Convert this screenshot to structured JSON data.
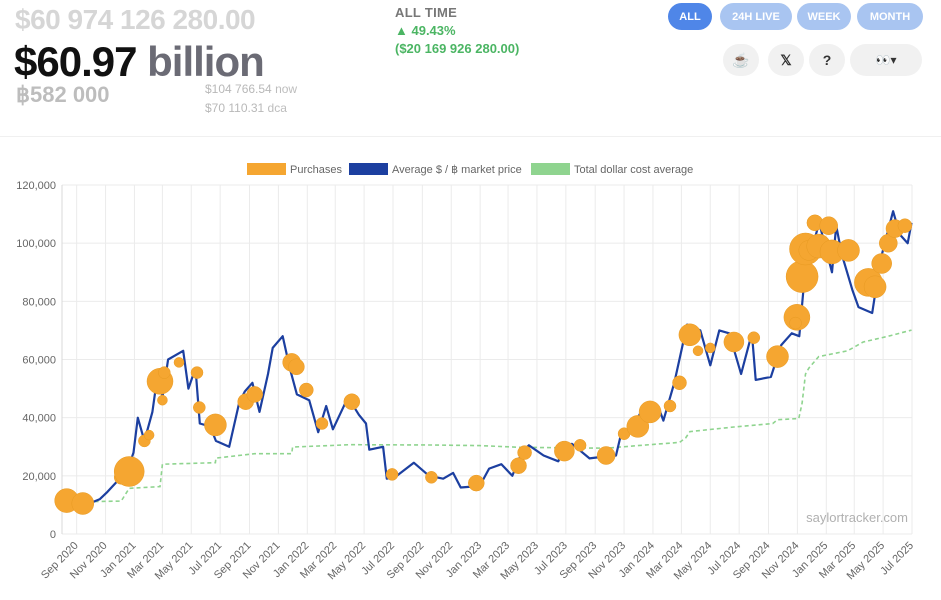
{
  "header": {
    "ghost_value": "$60 974 126 280.00",
    "main_value": "$60.97",
    "main_unit": "billion",
    "btc_amount": "฿582 000",
    "price_value": "$104 766.54",
    "price_label": "now",
    "dca_value": "$70 110.31",
    "dca_label": "dca"
  },
  "performance": {
    "label": "ALL TIME",
    "percent": "▲ 49.43%",
    "usd_gain": "($20 169 926 280.00)"
  },
  "range_buttons": [
    {
      "label": "ALL",
      "active": true
    },
    {
      "label": "24H LIVE",
      "active": false
    },
    {
      "label": "WEEK",
      "active": false
    },
    {
      "label": "MONTH",
      "active": false
    }
  ],
  "icon_buttons": [
    {
      "name": "coffee-icon",
      "glyph": "☕"
    },
    {
      "name": "x-logo-icon",
      "glyph": "𝕏"
    },
    {
      "name": "help-icon",
      "glyph": "?"
    },
    {
      "name": "theme-menu-icon",
      "glyph": "👀▾"
    }
  ],
  "colors": {
    "purchases": "#f5a631",
    "market": "#1c3fa0",
    "dca": "#8fd48f",
    "grid": "#ebebeb"
  },
  "chart_data": {
    "type": "line",
    "title": "",
    "xlabel": "",
    "ylabel": "",
    "ylim": [
      0,
      120000
    ],
    "y_ticks": [
      0,
      20000,
      40000,
      60000,
      80000,
      100000,
      120000
    ],
    "x_ticks": [
      "Sep 2020",
      "Nov 2020",
      "Jan 2021",
      "Mar 2021",
      "May 2021",
      "Jul 2021",
      "Sep 2021",
      "Nov 2021",
      "Jan 2022",
      "Mar 2022",
      "May 2022",
      "Jul 2022",
      "Sep 2022",
      "Nov 2022",
      "Jan 2023",
      "Mar 2023",
      "May 2023",
      "Jul 2023",
      "Sep 2023",
      "Nov 2023",
      "Jan 2024",
      "Mar 2024",
      "May 2024",
      "Jul 2024",
      "Sep 2024",
      "Nov 2024",
      "Jan 2025",
      "Mar 2025",
      "May 2025",
      "Jul 2025"
    ],
    "x_range": [
      "2020-08-01",
      "2025-07-01"
    ],
    "legend": [
      "Purchases",
      "Average $ / ฿ market price",
      "Total dollar cost average"
    ],
    "legend_position": "top",
    "watermark": "saylortracker.com",
    "series": [
      {
        "name": "Average $ / ฿ market price",
        "type": "line",
        "points": [
          [
            "2020-08-11",
            11500
          ],
          [
            "2020-09-01",
            11000
          ],
          [
            "2020-10-01",
            10700
          ],
          [
            "2020-10-20",
            12000
          ],
          [
            "2020-11-05",
            14500
          ],
          [
            "2020-11-25",
            18000
          ],
          [
            "2020-12-10",
            18500
          ],
          [
            "2020-12-30",
            28000
          ],
          [
            "2021-01-08",
            40000
          ],
          [
            "2021-01-22",
            32000
          ],
          [
            "2021-02-08",
            42000
          ],
          [
            "2021-02-20",
            56000
          ],
          [
            "2021-03-01",
            47000
          ],
          [
            "2021-03-13",
            60000
          ],
          [
            "2021-04-14",
            63000
          ],
          [
            "2021-04-25",
            50000
          ],
          [
            "2021-05-10",
            57000
          ],
          [
            "2021-05-19",
            38000
          ],
          [
            "2021-06-10",
            37000
          ],
          [
            "2021-06-22",
            32000
          ],
          [
            "2021-07-20",
            30000
          ],
          [
            "2021-08-10",
            45000
          ],
          [
            "2021-08-22",
            49000
          ],
          [
            "2021-09-07",
            52000
          ],
          [
            "2021-09-22",
            42000
          ],
          [
            "2021-10-10",
            55000
          ],
          [
            "2021-10-20",
            64000
          ],
          [
            "2021-11-10",
            68000
          ],
          [
            "2021-11-25",
            57000
          ],
          [
            "2021-12-10",
            48000
          ],
          [
            "2022-01-05",
            46000
          ],
          [
            "2022-01-24",
            35000
          ],
          [
            "2022-02-10",
            44000
          ],
          [
            "2022-02-24",
            36000
          ],
          [
            "2022-03-28",
            47000
          ],
          [
            "2022-04-20",
            41000
          ],
          [
            "2022-05-05",
            38000
          ],
          [
            "2022-05-12",
            29000
          ],
          [
            "2022-06-10",
            30000
          ],
          [
            "2022-06-18",
            19000
          ],
          [
            "2022-07-05",
            19500
          ],
          [
            "2022-08-14",
            24500
          ],
          [
            "2022-09-15",
            20000
          ],
          [
            "2022-10-15",
            19000
          ],
          [
            "2022-11-05",
            21000
          ],
          [
            "2022-11-21",
            16000
          ],
          [
            "2022-12-31",
            16500
          ],
          [
            "2023-01-20",
            22500
          ],
          [
            "2023-02-15",
            24000
          ],
          [
            "2023-03-10",
            20000
          ],
          [
            "2023-03-30",
            28000
          ],
          [
            "2023-04-14",
            30500
          ],
          [
            "2023-05-15",
            27000
          ],
          [
            "2023-06-15",
            25000
          ],
          [
            "2023-06-30",
            30500
          ],
          [
            "2023-07-14",
            31000
          ],
          [
            "2023-08-20",
            26000
          ],
          [
            "2023-09-15",
            26500
          ],
          [
            "2023-10-15",
            27000
          ],
          [
            "2023-10-25",
            34000
          ],
          [
            "2023-11-20",
            37000
          ],
          [
            "2023-12-10",
            43000
          ],
          [
            "2024-01-15",
            42500
          ],
          [
            "2024-01-23",
            39000
          ],
          [
            "2024-02-15",
            52000
          ],
          [
            "2024-03-13",
            72000
          ],
          [
            "2024-04-10",
            70000
          ],
          [
            "2024-05-01",
            58000
          ],
          [
            "2024-05-20",
            70000
          ],
          [
            "2024-06-10",
            69000
          ],
          [
            "2024-07-05",
            55000
          ],
          [
            "2024-07-28",
            69000
          ],
          [
            "2024-08-05",
            53000
          ],
          [
            "2024-09-06",
            54000
          ],
          [
            "2024-09-28",
            65000
          ],
          [
            "2024-10-20",
            69000
          ],
          [
            "2024-11-05",
            68000
          ],
          [
            "2024-11-22",
            99000
          ],
          [
            "2024-12-05",
            100000
          ],
          [
            "2024-12-17",
            107000
          ],
          [
            "2025-01-13",
            90000
          ],
          [
            "2025-01-22",
            106000
          ],
          [
            "2025-02-03",
            96000
          ],
          [
            "2025-02-25",
            84000
          ],
          [
            "2025-03-10",
            78000
          ],
          [
            "2025-04-08",
            76000
          ],
          [
            "2025-04-25",
            94000
          ],
          [
            "2025-05-22",
            111000
          ],
          [
            "2025-06-05",
            103000
          ],
          [
            "2025-06-22",
            100000
          ],
          [
            "2025-06-30",
            107000
          ]
        ]
      },
      {
        "name": "Total dollar cost average",
        "type": "line",
        "points": [
          [
            "2020-08-11",
            11600
          ],
          [
            "2020-09-14",
            11100
          ],
          [
            "2020-12-04",
            11300
          ],
          [
            "2020-12-21",
            15700
          ],
          [
            "2021-02-24",
            16300
          ],
          [
            "2021-03-01",
            24000
          ],
          [
            "2021-06-21",
            24500
          ],
          [
            "2021-06-22",
            26100
          ],
          [
            "2021-09-12",
            27600
          ],
          [
            "2021-11-29",
            27600
          ],
          [
            "2021-12-01",
            29900
          ],
          [
            "2022-02-01",
            30300
          ],
          [
            "2022-03-31",
            30700
          ],
          [
            "2022-09-20",
            30600
          ],
          [
            "2022-12-31",
            30400
          ],
          [
            "2023-03-25",
            29800
          ],
          [
            "2023-09-24",
            29500
          ],
          [
            "2023-11-30",
            30400
          ],
          [
            "2024-02-26",
            31500
          ],
          [
            "2024-03-10",
            33000
          ],
          [
            "2024-03-19",
            35200
          ],
          [
            "2024-06-20",
            36800
          ],
          [
            "2024-09-10",
            38000
          ],
          [
            "2024-09-20",
            39300
          ],
          [
            "2024-11-04",
            39700
          ],
          [
            "2024-11-11",
            45000
          ],
          [
            "2024-11-18",
            55000
          ],
          [
            "2024-11-25",
            57000
          ],
          [
            "2024-12-16",
            61000
          ],
          [
            "2025-02-15",
            63000
          ],
          [
            "2025-03-20",
            66000
          ],
          [
            "2025-05-12",
            68000
          ],
          [
            "2025-06-30",
            70110
          ]
        ]
      }
    ],
    "purchases": [
      [
        "2020-08-11",
        11500,
        12
      ],
      [
        "2020-09-14",
        10500,
        11
      ],
      [
        "2020-12-04",
        19500,
        7
      ],
      [
        "2020-12-21",
        21500,
        15
      ],
      [
        "2021-01-22",
        32000,
        6
      ],
      [
        "2021-02-01",
        34000,
        5
      ],
      [
        "2021-02-24",
        52500,
        13
      ],
      [
        "2021-03-01",
        46000,
        5
      ],
      [
        "2021-03-05",
        55500,
        6
      ],
      [
        "2021-04-05",
        59000,
        5
      ],
      [
        "2021-05-13",
        55500,
        6
      ],
      [
        "2021-05-18",
        43500,
        6
      ],
      [
        "2021-06-21",
        37500,
        11
      ],
      [
        "2021-08-24",
        45500,
        8
      ],
      [
        "2021-09-12",
        48000,
        8
      ],
      [
        "2021-11-29",
        59000,
        9
      ],
      [
        "2021-12-09",
        57500,
        8
      ],
      [
        "2021-12-30",
        49500,
        7
      ],
      [
        "2022-02-01",
        38000,
        6
      ],
      [
        "2022-04-05",
        45500,
        8
      ],
      [
        "2022-06-29",
        20500,
        6
      ],
      [
        "2022-09-20",
        19500,
        6
      ],
      [
        "2022-12-24",
        17500,
        8
      ],
      [
        "2023-03-23",
        23500,
        8
      ],
      [
        "2023-04-05",
        28000,
        7
      ],
      [
        "2023-06-28",
        28500,
        10
      ],
      [
        "2023-07-31",
        30500,
        6
      ],
      [
        "2023-09-24",
        27000,
        9
      ],
      [
        "2023-11-01",
        34500,
        6
      ],
      [
        "2023-11-30",
        37000,
        11
      ],
      [
        "2023-12-26",
        42000,
        11
      ],
      [
        "2024-02-06",
        44000,
        6
      ],
      [
        "2024-02-26",
        52000,
        7
      ],
      [
        "2024-03-19",
        68500,
        11
      ],
      [
        "2024-04-05",
        63000,
        5
      ],
      [
        "2024-05-01",
        64000,
        5
      ],
      [
        "2024-06-20",
        66000,
        10
      ],
      [
        "2024-08-01",
        67500,
        6
      ],
      [
        "2024-09-20",
        61000,
        11
      ],
      [
        "2024-11-11",
        88500,
        16
      ],
      [
        "2024-11-18",
        98000,
        16
      ],
      [
        "2024-11-25",
        97500,
        10
      ],
      [
        "2024-12-08",
        107000,
        8
      ],
      [
        "2024-12-16",
        99000,
        12
      ],
      [
        "2025-01-06",
        106000,
        9
      ],
      [
        "2025-01-13",
        97000,
        12
      ],
      [
        "2025-02-17",
        97500,
        11
      ],
      [
        "2025-03-31",
        86500,
        14
      ],
      [
        "2025-04-14",
        85000,
        11
      ],
      [
        "2025-04-28",
        93000,
        10
      ],
      [
        "2025-05-12",
        100000,
        9
      ],
      [
        "2025-05-26",
        105000,
        9
      ],
      [
        "2025-06-16",
        106000,
        7
      ],
      [
        "2024-10-31",
        74500,
        13
      ],
      [
        "2024-10-28",
        72500,
        6
      ]
    ]
  }
}
